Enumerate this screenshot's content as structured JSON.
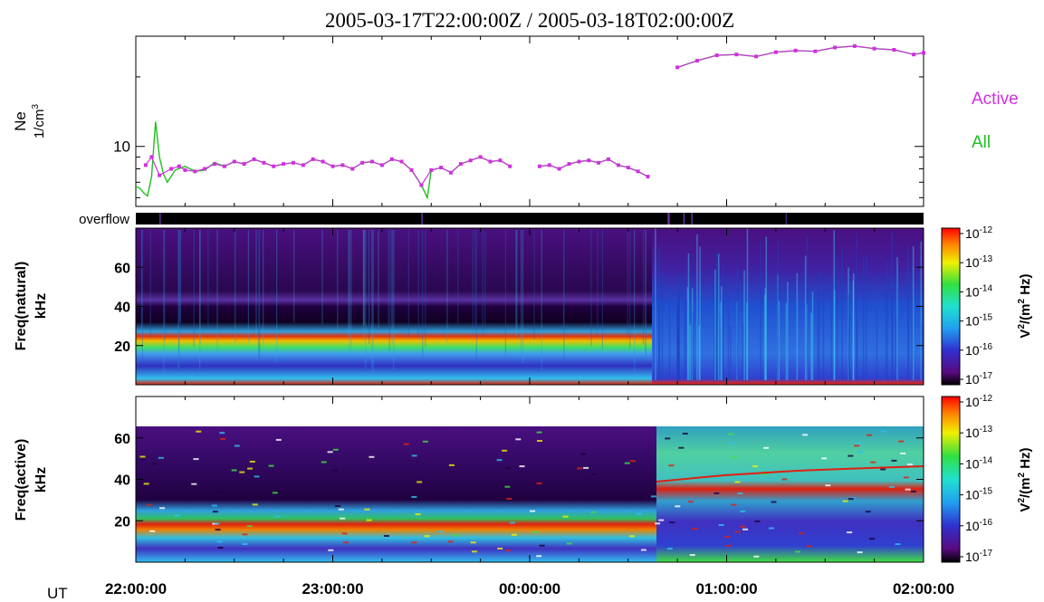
{
  "chart_data": [
    {
      "type": "line",
      "panel": "density",
      "title": "2005-03-17T22:00:00Z / 2005-03-18T02:00:00Z",
      "ylabel_main": "Ne",
      "ylabel_unit_base": "1/cm",
      "ylabel_unit_exp": "3",
      "yscale": "log",
      "ylim": [
        5.5,
        30
      ],
      "ytick_labels": [
        "10"
      ],
      "ytick_values": [
        10
      ],
      "xlim_hours": [
        22,
        26
      ],
      "legend_position": "right",
      "series": [
        {
          "name": "Active",
          "color": "#d030e0",
          "segments": [
            [
              [
                22.05,
                8.3
              ],
              [
                22.08,
                9.0
              ],
              [
                22.12,
                7.5
              ],
              [
                22.18,
                8.0
              ],
              [
                22.22,
                8.2
              ],
              [
                22.25,
                7.9
              ],
              [
                22.3,
                7.8
              ],
              [
                22.35,
                8.0
              ],
              [
                22.4,
                8.4
              ],
              [
                22.45,
                8.2
              ],
              [
                22.5,
                8.6
              ],
              [
                22.55,
                8.4
              ],
              [
                22.6,
                8.8
              ],
              [
                22.65,
                8.5
              ],
              [
                22.7,
                8.2
              ],
              [
                22.75,
                8.4
              ],
              [
                22.8,
                8.5
              ],
              [
                22.85,
                8.3
              ],
              [
                22.9,
                8.8
              ],
              [
                22.95,
                8.6
              ],
              [
                23.0,
                8.2
              ],
              [
                23.05,
                8.3
              ],
              [
                23.1,
                8.0
              ],
              [
                23.15,
                8.5
              ],
              [
                23.2,
                8.6
              ],
              [
                23.25,
                8.3
              ],
              [
                23.3,
                8.8
              ],
              [
                23.35,
                8.6
              ],
              [
                23.4,
                7.9
              ],
              [
                23.45,
                6.8
              ],
              [
                23.5,
                7.9
              ],
              [
                23.55,
                8.1
              ],
              [
                23.6,
                7.7
              ],
              [
                23.65,
                8.4
              ],
              [
                23.7,
                8.7
              ],
              [
                23.75,
                9.0
              ],
              [
                23.8,
                8.6
              ],
              [
                23.85,
                8.7
              ],
              [
                23.9,
                8.2
              ]
            ],
            [
              [
                24.05,
                8.2
              ],
              [
                24.1,
                8.3
              ],
              [
                24.15,
                8.0
              ],
              [
                24.2,
                8.4
              ],
              [
                24.25,
                8.6
              ],
              [
                24.3,
                8.7
              ],
              [
                24.35,
                8.5
              ],
              [
                24.4,
                8.8
              ],
              [
                24.45,
                8.3
              ],
              [
                24.5,
                8.1
              ],
              [
                24.55,
                7.8
              ],
              [
                24.6,
                7.4
              ]
            ],
            [
              [
                24.75,
                22.0
              ],
              [
                24.85,
                23.5
              ],
              [
                24.95,
                24.8
              ],
              [
                25.05,
                25.0
              ],
              [
                25.15,
                24.5
              ],
              [
                25.25,
                25.6
              ],
              [
                25.35,
                26.0
              ],
              [
                25.45,
                25.8
              ],
              [
                25.55,
                26.8
              ],
              [
                25.65,
                27.2
              ],
              [
                25.75,
                26.5
              ],
              [
                25.85,
                26.2
              ],
              [
                25.95,
                25.0
              ],
              [
                26.0,
                25.4
              ]
            ]
          ]
        },
        {
          "name": "All",
          "color": "#20c020",
          "segments": [
            [
              [
                22.0,
                6.7
              ],
              [
                22.02,
                6.6
              ],
              [
                22.04,
                6.3
              ],
              [
                22.06,
                6.1
              ],
              [
                22.08,
                7.4
              ],
              [
                22.1,
                12.8
              ],
              [
                22.12,
                9.0
              ],
              [
                22.14,
                7.6
              ],
              [
                22.16,
                7.0
              ],
              [
                22.2,
                7.9
              ],
              [
                22.25,
                8.2
              ],
              [
                22.3,
                7.8
              ],
              [
                22.35,
                7.9
              ],
              [
                22.4,
                8.5
              ],
              [
                22.45,
                8.2
              ],
              [
                22.5,
                8.6
              ],
              [
                22.55,
                8.4
              ],
              [
                22.6,
                8.8
              ],
              [
                22.65,
                8.5
              ],
              [
                22.7,
                8.2
              ],
              [
                22.75,
                8.4
              ],
              [
                22.8,
                8.5
              ],
              [
                22.85,
                8.3
              ],
              [
                22.9,
                8.8
              ],
              [
                22.95,
                8.6
              ],
              [
                23.0,
                8.2
              ],
              [
                23.05,
                8.3
              ],
              [
                23.1,
                8.0
              ],
              [
                23.15,
                8.5
              ],
              [
                23.2,
                8.6
              ],
              [
                23.25,
                8.3
              ],
              [
                23.3,
                8.8
              ],
              [
                23.35,
                8.6
              ],
              [
                23.4,
                7.9
              ],
              [
                23.45,
                6.8
              ],
              [
                23.48,
                6.0
              ],
              [
                23.5,
                7.9
              ],
              [
                23.55,
                8.1
              ],
              [
                23.6,
                7.7
              ],
              [
                23.65,
                8.4
              ],
              [
                23.7,
                8.7
              ],
              [
                23.75,
                9.0
              ],
              [
                23.8,
                8.6
              ],
              [
                23.85,
                8.7
              ],
              [
                23.9,
                8.2
              ]
            ],
            [
              [
                24.05,
                8.2
              ],
              [
                24.1,
                8.3
              ],
              [
                24.15,
                8.0
              ],
              [
                24.2,
                8.4
              ],
              [
                24.25,
                8.6
              ],
              [
                24.3,
                8.7
              ],
              [
                24.35,
                8.5
              ],
              [
                24.4,
                8.8
              ],
              [
                24.45,
                8.3
              ],
              [
                24.5,
                8.1
              ],
              [
                24.55,
                7.8
              ],
              [
                24.6,
                7.4
              ]
            ],
            [
              [
                24.75,
                22.0
              ],
              [
                24.85,
                23.5
              ],
              [
                24.95,
                24.8
              ],
              [
                25.05,
                25.0
              ],
              [
                25.15,
                24.5
              ],
              [
                25.25,
                25.6
              ],
              [
                25.35,
                26.0
              ],
              [
                25.45,
                25.8
              ],
              [
                25.55,
                26.8
              ],
              [
                25.65,
                27.2
              ],
              [
                25.75,
                26.5
              ],
              [
                25.85,
                26.2
              ],
              [
                25.95,
                25.0
              ],
              [
                26.0,
                25.4
              ]
            ]
          ]
        }
      ]
    },
    {
      "type": "heatmap",
      "panel": "overflow",
      "ylabel": "overflow"
    },
    {
      "type": "heatmap",
      "panel": "natural",
      "ylabel_line1": "Freq(natural)",
      "ylabel_line2": "kHz",
      "ylim": [
        0,
        80
      ],
      "ytick_labels": [
        "20",
        "40",
        "60"
      ],
      "ytick_values": [
        20,
        40,
        60
      ],
      "colorbar": {
        "label_base": "V",
        "label_exp": "2",
        "label_mid": "/(m",
        "label_mid_exp": "2",
        "label_end": " Hz)",
        "tick_base": "10",
        "tick_exps": [
          "-12",
          "-13",
          "-14",
          "-15",
          "-16",
          "-17"
        ]
      }
    },
    {
      "type": "heatmap",
      "panel": "active",
      "ylabel_line1": "Freq(active)",
      "ylabel_line2": "kHz",
      "ylim": [
        0,
        80
      ],
      "ytick_labels": [
        "20",
        "40",
        "60"
      ],
      "ytick_values": [
        20,
        40,
        60
      ],
      "colorbar": {
        "label_base": "V",
        "label_exp": "2",
        "label_mid": "/(m",
        "label_mid_exp": "2",
        "label_end": " Hz)",
        "tick_base": "10",
        "tick_exps": [
          "-12",
          "-13",
          "-14",
          "-15",
          "-16",
          "-17"
        ]
      }
    }
  ],
  "xaxis": {
    "label": "UT",
    "tick_labels": [
      "22:00:00",
      "23:00:00",
      "00:00:00",
      "01:00:00",
      "02:00:00"
    ],
    "tick_values_hours": [
      22,
      23,
      24,
      25,
      26
    ]
  }
}
